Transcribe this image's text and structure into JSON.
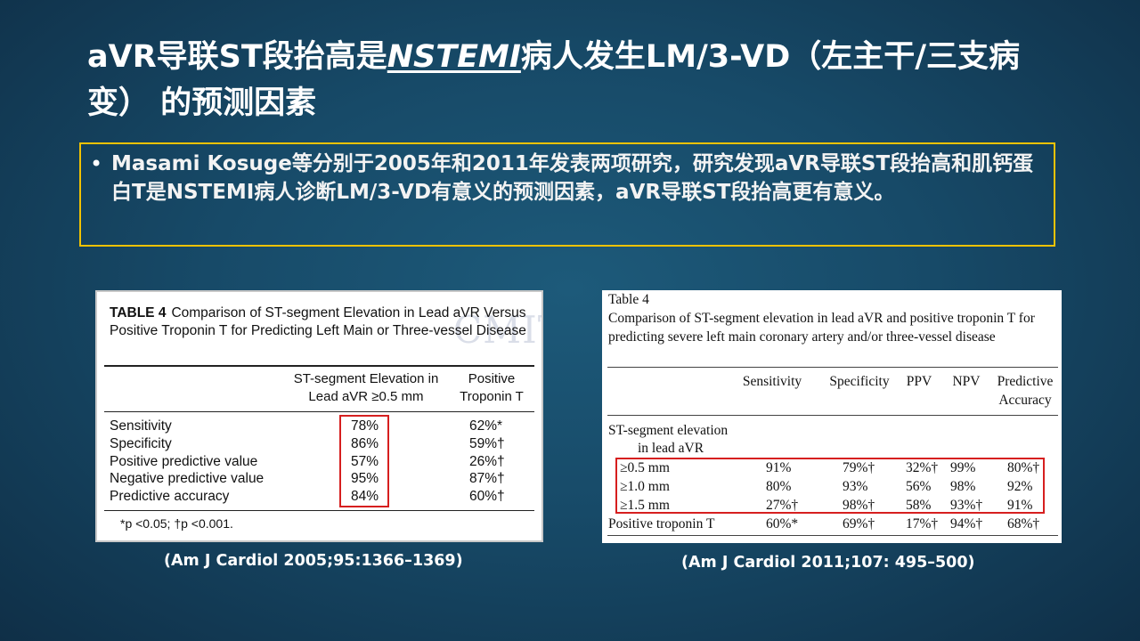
{
  "title": {
    "part1": "aVR导联ST段抬高是",
    "emphasis": "NSTEMI",
    "part2": "病人发生LM/3-VD（左主干/三支病变） 的预测因素"
  },
  "bullet": {
    "dot": "•",
    "text": "Masami Kosuge等分别于2005年和2011年发表两项研究，研究发现aVR导联ST段抬高和肌钙蛋白T是NSTEMI病人诊断LM/3-VD有意义的预测因素，aVR导联ST段抬高更有意义。"
  },
  "table1": {
    "label": "TABLE 4",
    "caption": "Comparison of ST-segment Elevation in Lead aVR Versus Positive Troponin T for Predicting Left Main or Three-vessel Disease",
    "col1_header": "ST-segment Elevation in Lead aVR ≥0.5 mm",
    "col2_header": "Positive Troponin T",
    "rows": [
      {
        "label": "Sensitivity",
        "v1": "78%",
        "v2": "62%*"
      },
      {
        "label": "Specificity",
        "v1": "86%",
        "v2": "59%†"
      },
      {
        "label": "Positive predictive value",
        "v1": "57%",
        "v2": "26%†"
      },
      {
        "label": "Negative predictive value",
        "v1": "95%",
        "v2": "87%†"
      },
      {
        "label": "Predictive accuracy",
        "v1": "84%",
        "v2": "60%†"
      }
    ],
    "footnote": "*p <0.05; †p <0.001.",
    "watermark": "CMIT"
  },
  "table2": {
    "label": "Table 4",
    "caption": "Comparison of ST-segment elevation in lead aVR and positive troponin T for predicting severe left main coronary artery and/or three-vessel disease",
    "headers": [
      "Sensitivity",
      "Specificity",
      "PPV",
      "NPV",
      "Predictive Accuracy"
    ],
    "group_label": "ST-segment elevation",
    "group_sublabel": "in lead aVR",
    "rows": [
      {
        "label": "≥0.5 mm",
        "values": [
          "91%",
          "79%†",
          "32%†",
          "99%",
          "80%†"
        ]
      },
      {
        "label": "≥1.0 mm",
        "values": [
          "80%",
          "93%",
          "56%",
          "98%",
          "92%"
        ]
      },
      {
        "label": "≥1.5 mm",
        "values": [
          "27%†",
          "98%†",
          "58%",
          "93%†",
          "91%"
        ]
      },
      {
        "label": "Positive troponin T",
        "values": [
          "60%*",
          "69%†",
          "17%†",
          "94%†",
          "68%†"
        ]
      }
    ]
  },
  "citations": {
    "left": "(Am J Cardiol 2005;95:1366–1369)",
    "right": "(Am J Cardiol 2011;107: 495–500)"
  },
  "colors": {
    "background": "#174a68",
    "bullet_border": "#f2c200",
    "highlight_box": "#d61f1f"
  }
}
